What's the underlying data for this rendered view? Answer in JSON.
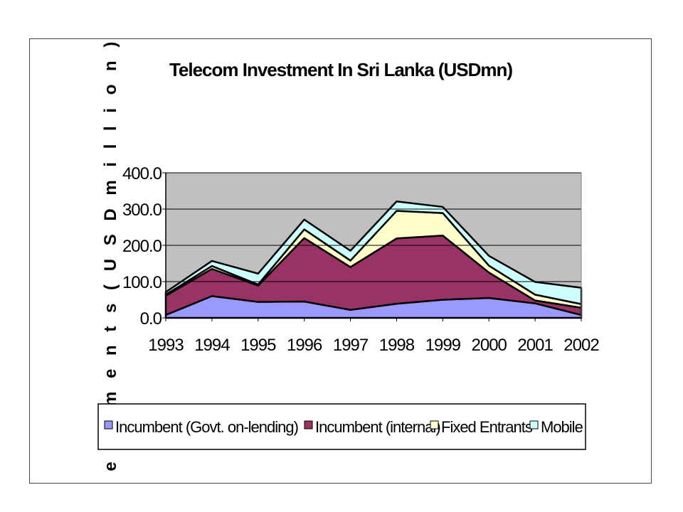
{
  "chart_data": {
    "type": "area",
    "stacked": true,
    "title": "Telecom Investment In Sri Lanka (USDmn)",
    "xlabel": "",
    "ylabel": "I n v e s t m e n t s  ( U S D  m i l l i o n )",
    "ylim": [
      0,
      400
    ],
    "yticks": [
      "0.0",
      "100.0",
      "200.0",
      "300.0",
      "400.0"
    ],
    "ytick_values": [
      0,
      100,
      200,
      300,
      400
    ],
    "categories": [
      "1993",
      "1994",
      "1995",
      "1996",
      "1997",
      "1998",
      "1999",
      "2000",
      "2001",
      "2002"
    ],
    "grid": true,
    "legend_position": "bottom",
    "series": [
      {
        "name": "Incumbent (Govt. on-lending)",
        "color": "#9999ff",
        "values": [
          8,
          60,
          44,
          45,
          22,
          39,
          50,
          55,
          40,
          8
        ]
      },
      {
        "name": "Incumbent (internal)",
        "color": "#993366",
        "values": [
          53,
          75,
          45,
          175,
          118,
          180,
          177,
          70,
          8,
          20
        ]
      },
      {
        "name": "Fixed Entrants",
        "color": "#ffffcc",
        "values": [
          3,
          8,
          3,
          24,
          18,
          76,
          62,
          19,
          16,
          10
        ]
      },
      {
        "name": "Mobile",
        "color": "#ccffff",
        "values": [
          7,
          14,
          30,
          27,
          27,
          26,
          17,
          27,
          35,
          45
        ]
      }
    ]
  }
}
